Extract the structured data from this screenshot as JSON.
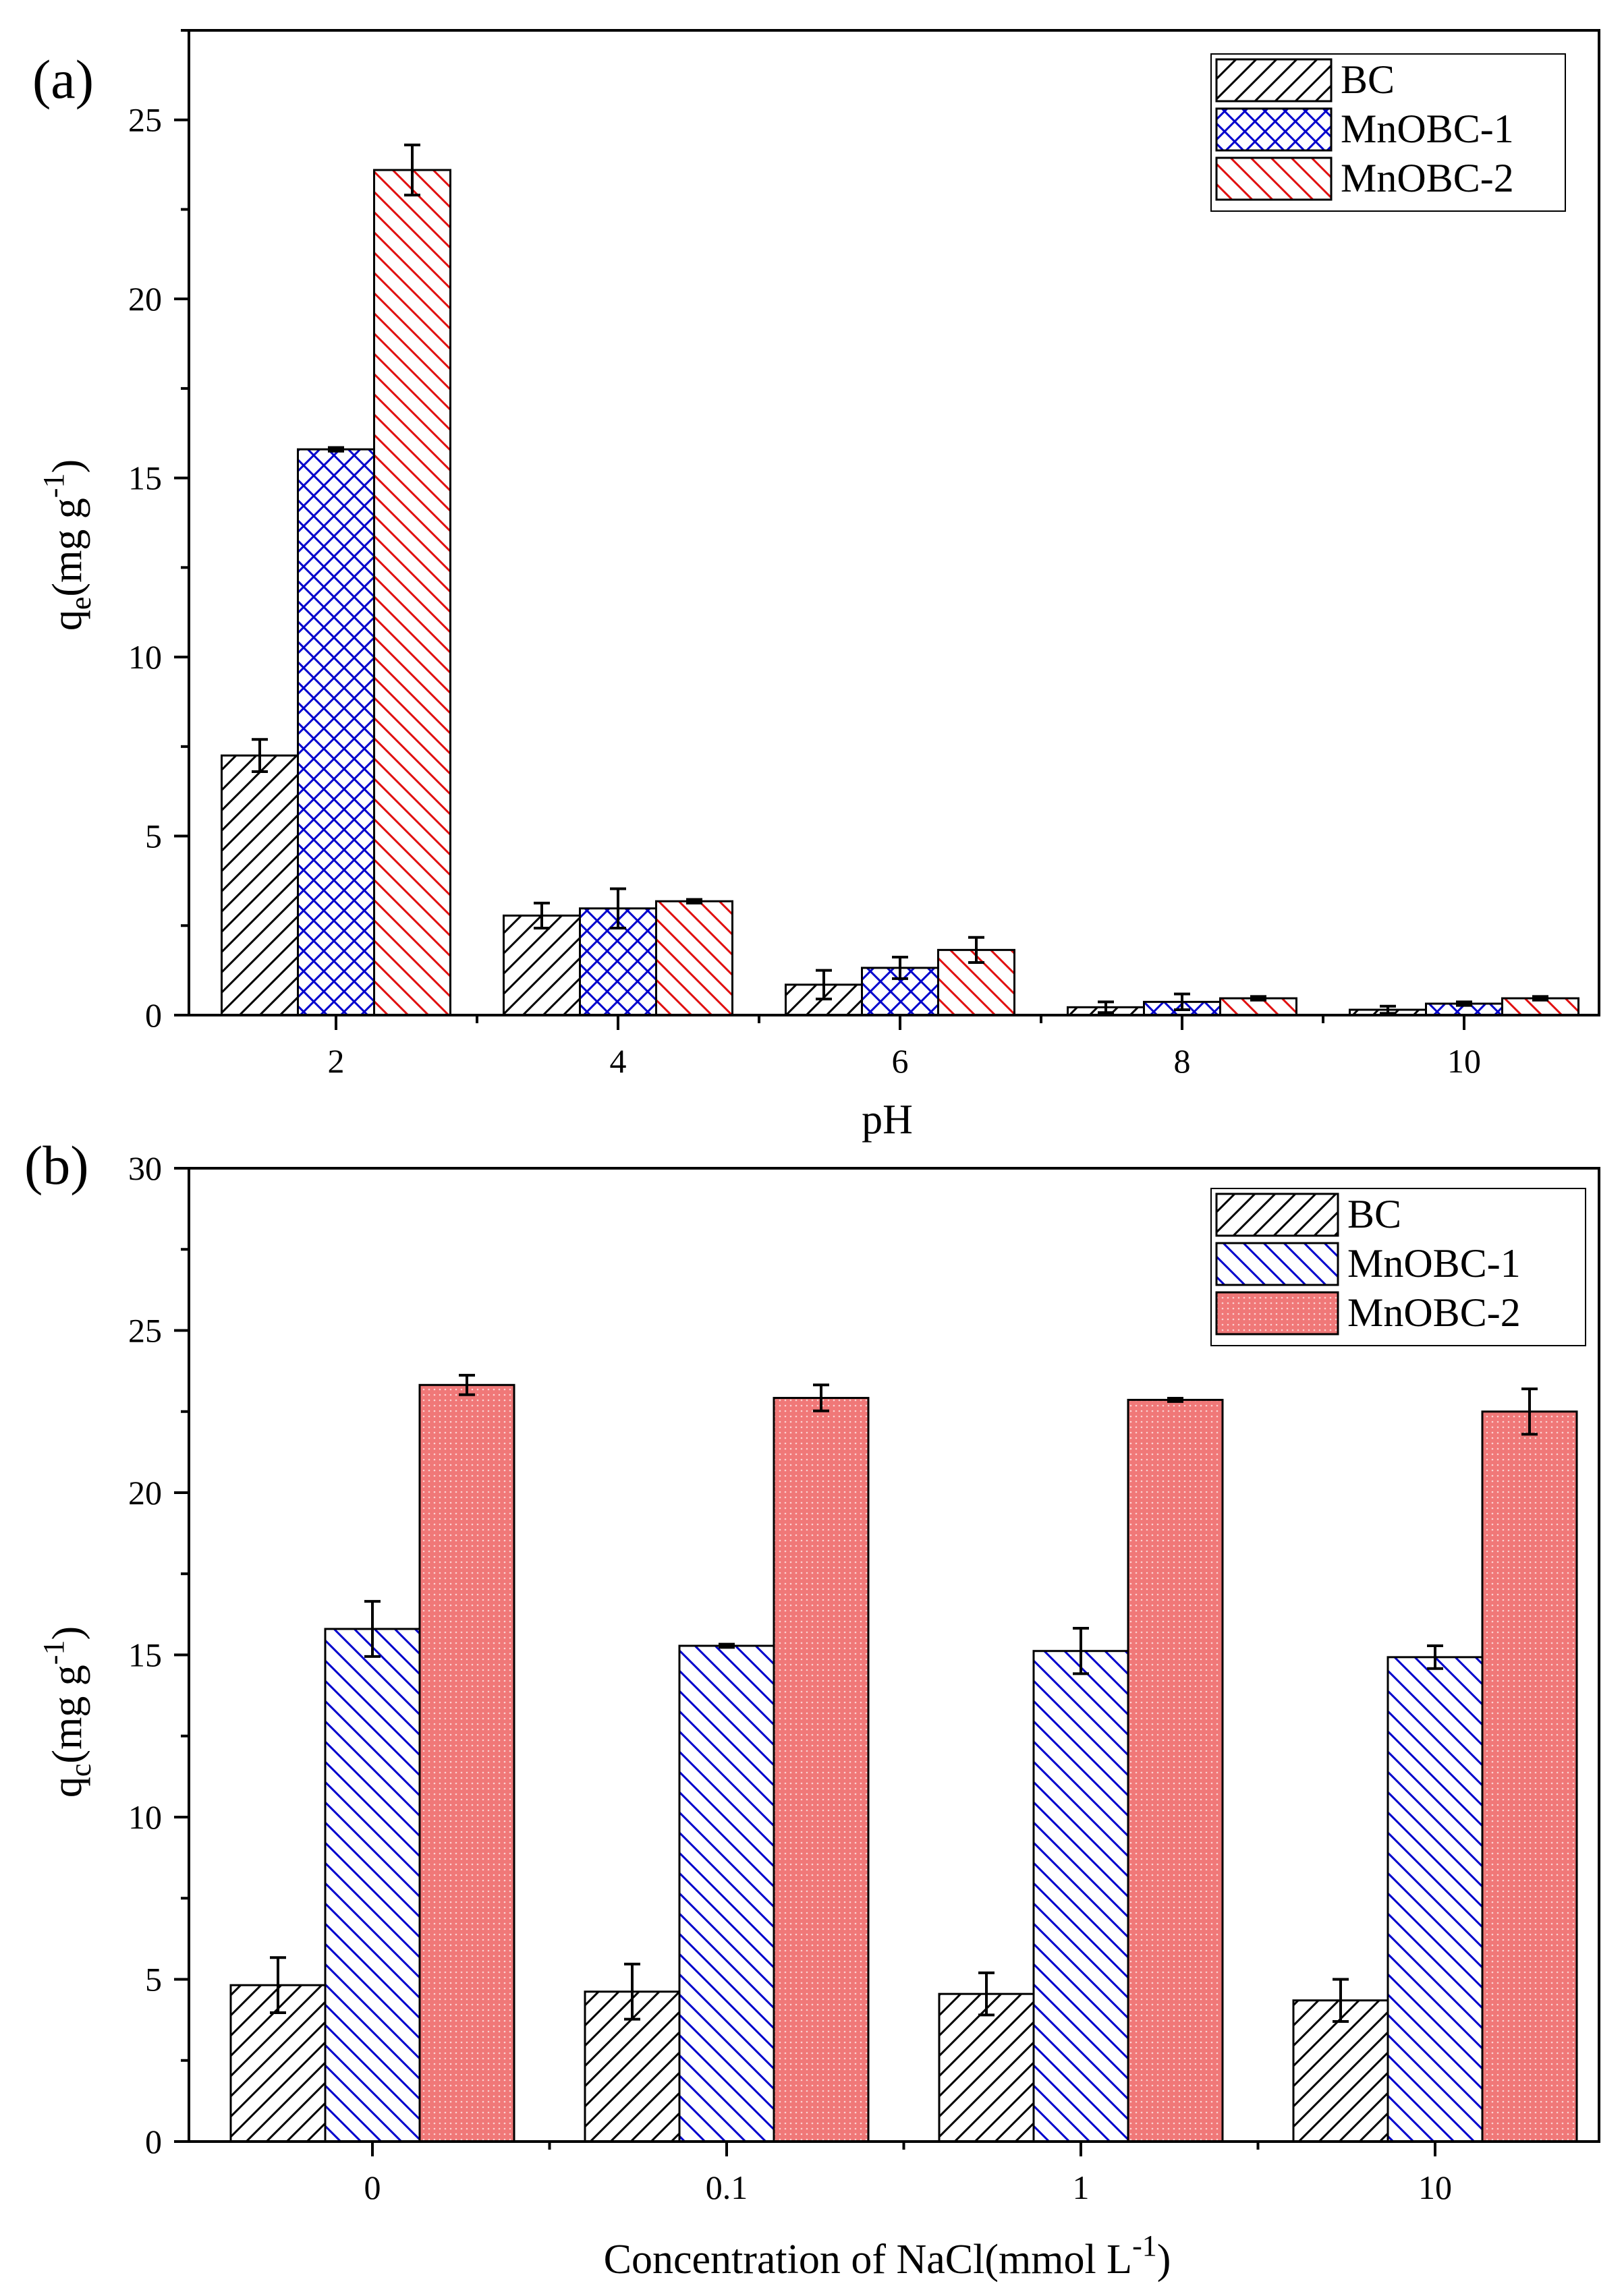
{
  "chart_data": [
    {
      "panel_label": "(a)",
      "type": "bar",
      "xlabel": "pH",
      "ylabel": "q",
      "ylabel_sub": "e",
      "ylabel_rest": "(mg g",
      "ylabel_sup": "-1",
      "ylabel_close": ")",
      "categories": [
        "2",
        "4",
        "6",
        "8",
        "10"
      ],
      "ylim": [
        0,
        27.5
      ],
      "yticks": [
        "0",
        "5",
        "10",
        "15",
        "20",
        "25"
      ],
      "series": [
        {
          "name": "BC",
          "color": "#000000",
          "fill": "none",
          "pattern": "diag-up",
          "values": [
            7.25,
            2.78,
            0.85,
            0.22,
            0.15
          ],
          "errors": [
            0.45,
            0.35,
            0.4,
            0.15,
            0.1
          ]
        },
        {
          "name": "MnOBC-1",
          "color": "#0000cc",
          "fill": "none",
          "pattern": "cross",
          "values": [
            15.8,
            2.98,
            1.32,
            0.37,
            0.32
          ],
          "errors": [
            0.05,
            0.55,
            0.3,
            0.22,
            0.05
          ]
        },
        {
          "name": "MnOBC-2",
          "color": "#e01010",
          "fill": "none",
          "pattern": "diag-down",
          "values": [
            23.6,
            3.18,
            1.82,
            0.47,
            0.47
          ],
          "errors": [
            0.7,
            0.05,
            0.35,
            0.05,
            0.05
          ]
        }
      ],
      "legend": "top-right"
    },
    {
      "panel_label": "(b)",
      "type": "bar",
      "xlabel": "Concentration of NaCl(mmol L",
      "xlabel_sup": "-1",
      "xlabel_close": ")",
      "ylabel": "q",
      "ylabel_sub": "c",
      "ylabel_rest": "(mg g",
      "ylabel_sup": "-1",
      "ylabel_close": ")",
      "categories": [
        "0",
        "0.1",
        "1",
        "10"
      ],
      "ylim": [
        0,
        30
      ],
      "yticks": [
        "0",
        "5",
        "10",
        "15",
        "20",
        "25",
        "30"
      ],
      "series": [
        {
          "name": "BC",
          "color": "#000000",
          "fill": "none",
          "pattern": "diag-up",
          "values": [
            4.82,
            4.62,
            4.55,
            4.35
          ],
          "errors": [
            0.85,
            0.85,
            0.65,
            0.65
          ]
        },
        {
          "name": "MnOBC-1",
          "color": "#0000cc",
          "fill": "none",
          "pattern": "diag-down",
          "values": [
            15.8,
            15.28,
            15.12,
            14.93
          ],
          "errors": [
            0.85,
            0.05,
            0.7,
            0.35
          ]
        },
        {
          "name": "MnOBC-2",
          "color": "#e01010",
          "fill": "#f07878",
          "pattern": "dots",
          "values": [
            23.32,
            22.92,
            22.86,
            22.5
          ],
          "errors": [
            0.3,
            0.4,
            0.05,
            0.7
          ]
        }
      ],
      "legend": "top-right"
    }
  ]
}
